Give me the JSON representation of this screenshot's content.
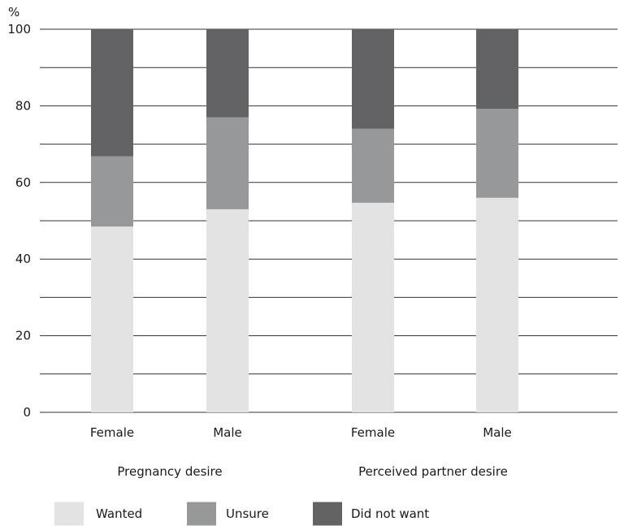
{
  "chart_data": {
    "type": "bar",
    "stacked": true,
    "y_unit_label": "%",
    "ylim": [
      0,
      100
    ],
    "yticks": [
      0,
      20,
      40,
      60,
      80,
      100
    ],
    "grid": true,
    "legend_position": "bottom",
    "groups": [
      {
        "label": "Pregnancy desire",
        "categories": [
          "Female",
          "Male"
        ]
      },
      {
        "label": "Perceived partner desire",
        "categories": [
          "Female",
          "Male"
        ]
      }
    ],
    "categories": [
      "Female",
      "Male",
      "Female",
      "Male"
    ],
    "series": [
      {
        "name": "Wanted",
        "color": "#e3e3e3",
        "values": [
          48.5,
          53,
          54.7,
          56
        ]
      },
      {
        "name": "Unsure",
        "color": "#97989a",
        "values": [
          18.3,
          24,
          19.3,
          23.2
        ]
      },
      {
        "name": "Did not want",
        "color": "#636365",
        "values": [
          33.2,
          23,
          26,
          20.8
        ]
      }
    ],
    "axis_color": "#333333"
  }
}
